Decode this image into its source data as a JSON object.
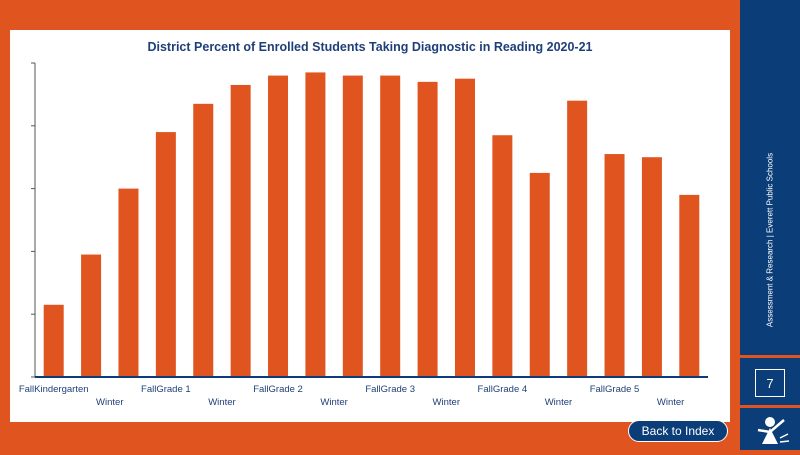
{
  "chart_data": {
    "type": "bar",
    "title": "District Percent of Enrolled Students Taking Diagnostic in Reading 2020-21",
    "categories": [
      "Fall",
      "Kindergarten",
      "Winter",
      "Fall",
      "Grade 1",
      "Winter",
      "Fall",
      "Grade 2",
      "Winter",
      "Fall",
      "Grade 3",
      "Winter",
      "Fall",
      "Grade 4",
      "Winter",
      "Fall",
      "Grade 5",
      "Winter"
    ],
    "x_tick_labels": [
      "FallKindergarten",
      "Winter",
      "FallGrade 1",
      "Winter",
      "FallGrade 2",
      "Winter",
      "FallGrade 3",
      "Winter",
      "FallGrade 4",
      "Winter",
      "FallGrade 5",
      "Winter"
    ],
    "values": [
      23,
      39,
      60,
      78,
      87,
      93,
      96,
      97,
      96,
      96,
      94,
      95,
      77,
      65,
      88,
      71,
      70,
      58
    ],
    "ylim": [
      0,
      100
    ],
    "bar_color": "#e0541f",
    "axis_color": "#0b3d78",
    "grid": false
  },
  "sidebar": {
    "caption": "Assessment & Research | Everett Public Schools",
    "page_number": "7",
    "logo_icon": "school-mascot-logo-icon"
  },
  "nav": {
    "back_label": "Back to Index"
  },
  "colors": {
    "background": "#e0541f",
    "sidebar": "#0b3d78",
    "title": "#1f3f7a"
  }
}
